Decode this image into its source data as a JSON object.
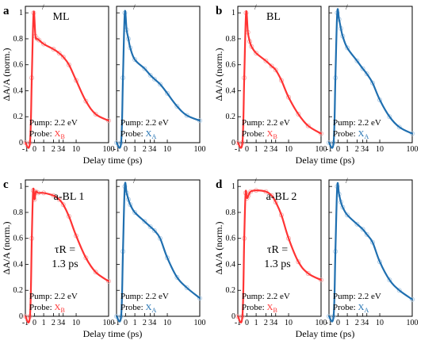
{
  "figure": {
    "y_axis_label": "ΔA/A (norm.)",
    "x_axis_label": "Delay time (ps)",
    "y_ticks": [
      "0",
      "0.2",
      "0.4",
      "0.6",
      "0.8",
      "1"
    ],
    "x_ticks": [
      "-1",
      "0",
      "1",
      "2",
      "3",
      "4",
      "10",
      "100"
    ],
    "axis_break_mark": "/",
    "pump_text": "Pump: 2.2 eV",
    "probe_prefix": "Probe: ",
    "probe_B_main": "X",
    "probe_B_sub": "B",
    "probe_A_main": "X",
    "probe_A_sub": "A"
  },
  "colors": {
    "XB": "#ff3333",
    "XA": "#1f6fb0",
    "XB_marker": "#f4a6a6",
    "XA_marker": "#a8c8e4"
  },
  "chart_data": [
    {
      "panel": "a",
      "sample": "ML",
      "tau_text": "",
      "type": "line",
      "xlabel": "Delay time (ps)",
      "ylabel": "ΔA/A (norm.)",
      "ylim": [
        0,
        1.05
      ],
      "x_axis": "linear from -1 to 1 ps, logarithmic from 1 to 100 ps",
      "series": [
        {
          "name": "Probe: XB",
          "pump": "2.2 eV",
          "color": "#ff3333",
          "x": [
            -1,
            -0.5,
            -0.3,
            -0.1,
            0.1,
            0.3,
            0.5,
            1,
            2,
            3,
            4,
            6,
            10,
            20,
            40,
            100
          ],
          "y": [
            0,
            0,
            0.5,
            1.0,
            0.82,
            0.8,
            0.79,
            0.76,
            0.72,
            0.69,
            0.66,
            0.6,
            0.48,
            0.32,
            0.22,
            0.17
          ]
        },
        {
          "name": "Probe: XA",
          "pump": "2.2 eV",
          "color": "#1f6fb0",
          "x": [
            -1,
            -0.5,
            -0.3,
            -0.1,
            0.1,
            0.3,
            0.5,
            1,
            2,
            3,
            4,
            6,
            10,
            20,
            40,
            100
          ],
          "y": [
            0,
            0,
            0.5,
            1.0,
            0.87,
            0.8,
            0.73,
            0.64,
            0.57,
            0.52,
            0.49,
            0.45,
            0.38,
            0.28,
            0.21,
            0.17
          ]
        }
      ]
    },
    {
      "panel": "b",
      "sample": "BL",
      "tau_text": "",
      "type": "line",
      "xlabel": "Delay time (ps)",
      "ylabel": "ΔA/A (norm.)",
      "ylim": [
        0,
        1.05
      ],
      "x_axis": "linear from -1 to 1 ps, logarithmic from 1 to 100 ps",
      "series": [
        {
          "name": "Probe: XB",
          "pump": "2.2 eV",
          "color": "#ff3333",
          "x": [
            -1,
            -0.5,
            -0.3,
            -0.1,
            0.1,
            0.3,
            0.5,
            1,
            2,
            3,
            4,
            6,
            10,
            20,
            40,
            100
          ],
          "y": [
            0,
            0,
            0.5,
            1.0,
            0.85,
            0.78,
            0.74,
            0.69,
            0.63,
            0.59,
            0.56,
            0.48,
            0.35,
            0.22,
            0.13,
            0.07
          ]
        },
        {
          "name": "Probe: XA",
          "pump": "2.2 eV",
          "color": "#1f6fb0",
          "x": [
            -1,
            -0.5,
            -0.3,
            -0.1,
            0.1,
            0.3,
            0.5,
            1,
            2,
            3,
            4,
            6,
            10,
            20,
            40,
            100
          ],
          "y": [
            0,
            0,
            0.5,
            1.0,
            0.95,
            0.88,
            0.82,
            0.73,
            0.63,
            0.57,
            0.53,
            0.46,
            0.33,
            0.2,
            0.12,
            0.07
          ]
        }
      ]
    },
    {
      "panel": "c",
      "sample": "a-BL 1",
      "tau_text": "τR = 1.3 ps",
      "type": "line",
      "xlabel": "Delay time (ps)",
      "ylabel": "ΔA/A (norm.)",
      "ylim": [
        0,
        1.05
      ],
      "x_axis": "linear from -1 to 1 ps, logarithmic from 1 to 100 ps",
      "series": [
        {
          "name": "Probe: XB",
          "pump": "2.2 eV",
          "color": "#ff3333",
          "x": [
            -1,
            -0.5,
            -0.3,
            -0.15,
            0,
            0.15,
            0.4,
            1,
            2,
            3,
            4,
            6,
            10,
            20,
            40,
            100
          ],
          "y": [
            0,
            0,
            0.6,
            0.97,
            0.9,
            0.96,
            0.95,
            0.95,
            0.93,
            0.9,
            0.86,
            0.77,
            0.62,
            0.45,
            0.34,
            0.27
          ]
        },
        {
          "name": "Probe: XA",
          "pump": "2.2 eV",
          "color": "#1f6fb0",
          "x": [
            -1,
            -0.5,
            -0.3,
            -0.1,
            0.1,
            0.3,
            0.5,
            1,
            2,
            3,
            4,
            6,
            10,
            20,
            40,
            100
          ],
          "y": [
            0,
            0,
            0.5,
            1.0,
            0.95,
            0.9,
            0.86,
            0.8,
            0.73,
            0.69,
            0.66,
            0.6,
            0.45,
            0.3,
            0.22,
            0.14
          ]
        }
      ]
    },
    {
      "panel": "d",
      "sample": "a-BL 2",
      "tau_text": "τR = 1.3 ps",
      "type": "line",
      "xlabel": "Delay time (ps)",
      "ylabel": "ΔA/A (norm.)",
      "ylim": [
        0,
        1.05
      ],
      "x_axis": "linear from -1 to 1 ps, logarithmic from 1 to 100 ps",
      "series": [
        {
          "name": "Probe: XB",
          "pump": "2.2 eV",
          "color": "#ff3333",
          "x": [
            -1,
            -0.5,
            -0.3,
            -0.15,
            0,
            0.15,
            0.4,
            1,
            2,
            3,
            4,
            6,
            10,
            20,
            40,
            100
          ],
          "y": [
            0,
            0,
            0.6,
            0.95,
            0.91,
            0.93,
            0.96,
            0.97,
            0.96,
            0.93,
            0.88,
            0.78,
            0.6,
            0.42,
            0.33,
            0.28
          ]
        },
        {
          "name": "Probe: XA",
          "pump": "2.2 eV",
          "color": "#1f6fb0",
          "x": [
            -1,
            -0.5,
            -0.3,
            -0.1,
            0.1,
            0.3,
            0.5,
            1,
            2,
            3,
            4,
            6,
            10,
            20,
            40,
            100
          ],
          "y": [
            0,
            0,
            0.5,
            1.0,
            0.94,
            0.88,
            0.84,
            0.78,
            0.71,
            0.67,
            0.63,
            0.57,
            0.42,
            0.28,
            0.2,
            0.13
          ]
        }
      ]
    }
  ]
}
